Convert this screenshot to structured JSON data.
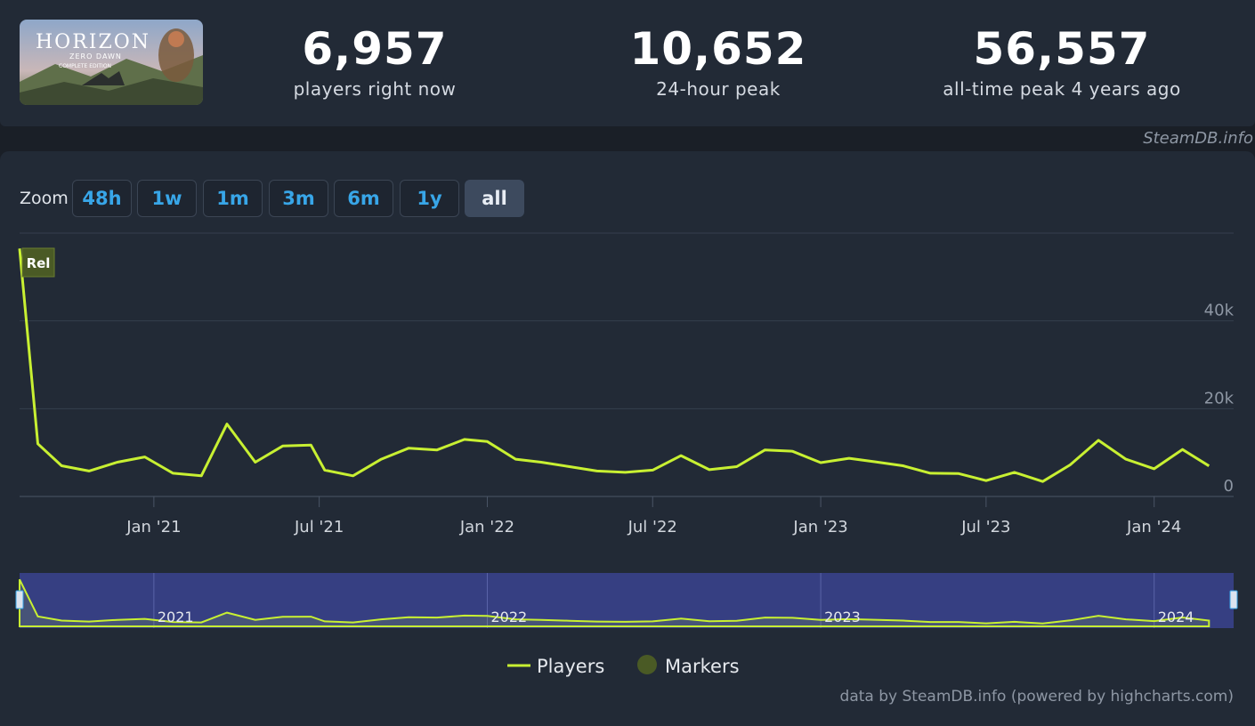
{
  "stats": [
    {
      "value": "6,957",
      "label": "players right now"
    },
    {
      "value": "10,652",
      "label": "24-hour peak"
    },
    {
      "value": "56,557",
      "label": "all-time peak 4 years ago"
    }
  ],
  "thumbnail": {
    "title": "HORIZON",
    "subtitle": "ZERO DAWN",
    "edition": "COMPLETE EDITION"
  },
  "credit_top": "SteamDB.info",
  "zoom": {
    "label": "Zoom",
    "buttons": [
      "48h",
      "1w",
      "1m",
      "3m",
      "6m",
      "1y",
      "all"
    ],
    "active": "all"
  },
  "marker_label": "Rel",
  "navigator_labels": [
    "2021",
    "2022",
    "2023",
    "2024"
  ],
  "legend": {
    "players": "Players",
    "markers": "Markers"
  },
  "footer_credit": "data by SteamDB.info (powered by highcharts.com)",
  "colors": {
    "line": "#c8f032",
    "marker": "#4a5a25",
    "accent": "#38a6e8",
    "navigator_bg": "#3b4491"
  },
  "chart_data": {
    "type": "line",
    "series": [
      {
        "name": "Players",
        "x": [
          "2020-08-07",
          "2020-08-27",
          "2020-09-22",
          "2020-10-22",
          "2020-11-22",
          "2020-12-22",
          "2021-01-01",
          "2021-01-22",
          "2021-02-22",
          "2021-03-22",
          "2021-04-22",
          "2021-05-22",
          "2021-06-22",
          "2021-07-07",
          "2021-08-07",
          "2021-09-07",
          "2021-10-07",
          "2021-11-07",
          "2021-12-07",
          "2022-01-01",
          "2022-02-01",
          "2022-03-01",
          "2022-04-01",
          "2022-05-01",
          "2022-06-01",
          "2022-07-01",
          "2022-08-01",
          "2022-09-01",
          "2022-10-01",
          "2022-11-01",
          "2022-12-01",
          "2023-01-01",
          "2023-02-01",
          "2023-03-01",
          "2023-04-01",
          "2023-05-01",
          "2023-06-01",
          "2023-07-01",
          "2023-08-01",
          "2023-09-01",
          "2023-10-01",
          "2023-11-01",
          "2023-12-01",
          "2024-01-01",
          "2024-02-01",
          "2024-03-01"
        ],
        "y": [
          56500,
          12000,
          7000,
          5800,
          7800,
          9000,
          7800,
          5300,
          4700,
          16500,
          7800,
          11500,
          11700,
          6000,
          4700,
          8500,
          11000,
          10600,
          13000,
          12500,
          8500,
          7800,
          6800,
          5800,
          5500,
          6000,
          9300,
          6100,
          6800,
          10600,
          10300,
          7700,
          8700,
          7900,
          7000,
          5300,
          5200,
          3600,
          5500,
          3400,
          7200,
          12800,
          8500,
          6300,
          10700,
          6957
        ]
      }
    ],
    "annotations": [
      {
        "x": "2020-08-07",
        "label": "Rel"
      }
    ],
    "xlabel": "",
    "ylabel": "",
    "x_ticks": [
      "Jan '21",
      "Jul '21",
      "Jan '22",
      "Jul '22",
      "Jan '23",
      "Jul '23",
      "Jan '24"
    ],
    "y_ticks": [
      "0",
      "20k",
      "40k"
    ],
    "ylim": [
      0,
      60000
    ],
    "xlim": [
      "2020-08-07",
      "2024-03-28"
    ],
    "grid": true,
    "legend_position": "bottom-center"
  }
}
